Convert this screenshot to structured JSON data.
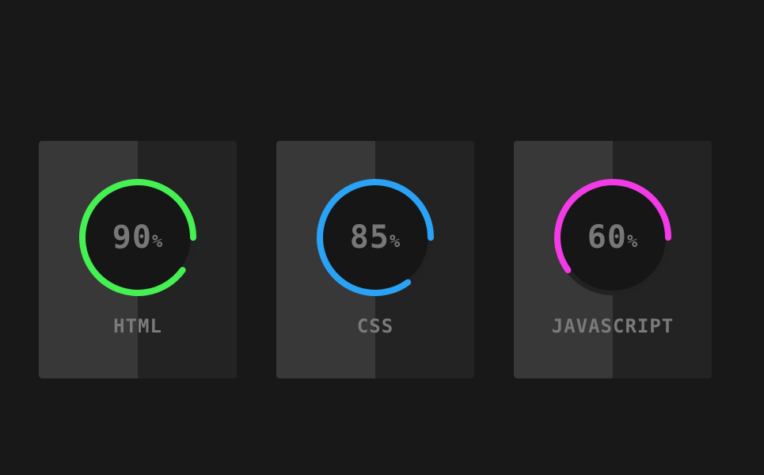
{
  "skills": [
    {
      "value": "90",
      "unit": "%",
      "name": "HTML",
      "progress": 0.9,
      "color": "#45f052"
    },
    {
      "value": "85",
      "unit": "%",
      "name": "CSS",
      "progress": 0.85,
      "color": "#2aa2f5"
    },
    {
      "value": "60",
      "unit": "%",
      "name": "JAVASCRIPT",
      "progress": 0.6,
      "color": "#f23ae6"
    }
  ],
  "colors": {
    "background": "#181818",
    "card_light": "#383838",
    "card_dark": "#232323",
    "ring_track": "#222222",
    "ring_inner": "#161616",
    "text": "#777777"
  }
}
